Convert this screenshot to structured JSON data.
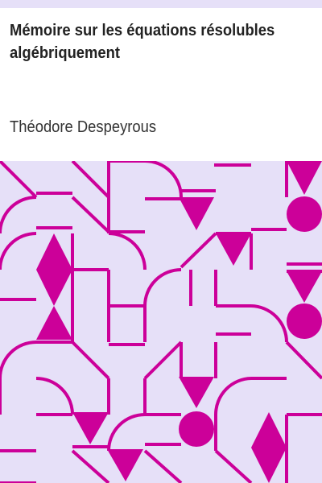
{
  "cover": {
    "title": "Mémoire sur les équations résolubles algébriquement",
    "author": "Théodore Despeyrous"
  },
  "colors": {
    "strip": "#e6e0f8",
    "pattern_background": "#e6e0f8",
    "pattern_ink": "#cc0099",
    "title_text": "#222222",
    "author_text": "#333333"
  }
}
